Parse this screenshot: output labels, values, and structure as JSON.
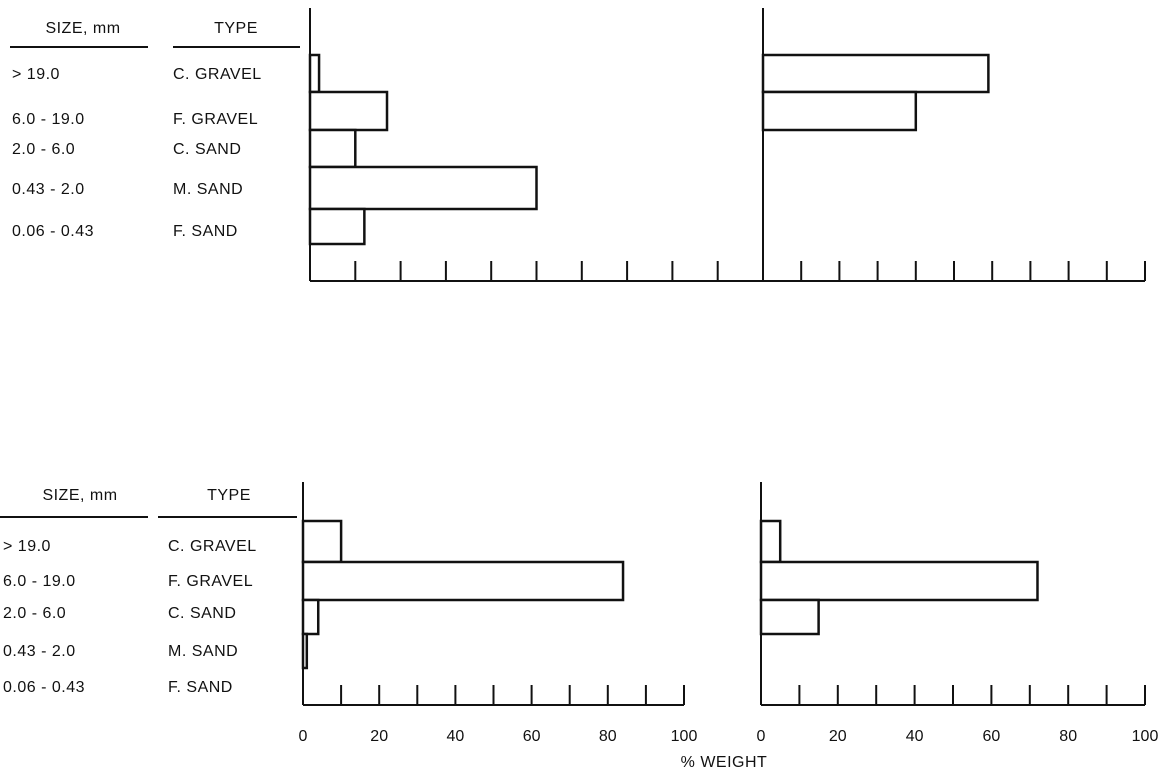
{
  "headers": {
    "size": "SIZE, mm",
    "type": "TYPE"
  },
  "x_axis_title": "% WEIGHT",
  "colors": {
    "ink": "#111111",
    "bar_fill": "#ffffff"
  },
  "chart_data": [
    {
      "type": "bar",
      "orientation": "horizontal",
      "panel": "top-left",
      "categories": [
        "> 19.0",
        "6.0 - 19.0",
        "2.0 - 6.0",
        "0.43 - 2.0",
        "0.06 - 0.43"
      ],
      "types": [
        "C. GRAVEL",
        "F. GRAVEL",
        "C. SAND",
        "M. SAND",
        "F. SAND"
      ],
      "values": [
        2,
        17,
        10,
        50,
        12
      ],
      "xlim": [
        0,
        100
      ],
      "tick_labels_shown": false
    },
    {
      "type": "bar",
      "orientation": "horizontal",
      "panel": "top-right",
      "categories": [
        "> 19.0",
        "6.0 - 19.0",
        "2.0 - 6.0",
        "0.43 - 2.0",
        "0.06 - 0.43"
      ],
      "types": [
        "C. GRAVEL",
        "F. GRAVEL",
        "C. SAND",
        "M. SAND",
        "F. SAND"
      ],
      "values": [
        59,
        40,
        0,
        0,
        0
      ],
      "xlim": [
        0,
        100
      ],
      "tick_labels_shown": false
    },
    {
      "type": "bar",
      "orientation": "horizontal",
      "panel": "bottom-left",
      "categories": [
        "> 19.0",
        "6.0 - 19.0",
        "2.0 - 6.0",
        "0.43 - 2.0",
        "0.06 - 0.43"
      ],
      "types": [
        "C. GRAVEL",
        "F. GRAVEL",
        "C. SAND",
        "M. SAND",
        "F. SAND"
      ],
      "values": [
        10,
        84,
        4,
        1,
        0
      ],
      "xlim": [
        0,
        100
      ],
      "ticks": [
        "0",
        "20",
        "40",
        "60",
        "80",
        "100"
      ],
      "tick_labels_shown": true
    },
    {
      "type": "bar",
      "orientation": "horizontal",
      "panel": "bottom-right",
      "categories": [
        "> 19.0",
        "6.0 - 19.0",
        "2.0 - 6.0",
        "0.43 - 2.0",
        "0.06 - 0.43"
      ],
      "types": [
        "C. GRAVEL",
        "F. GRAVEL",
        "C. SAND",
        "M. SAND",
        "F. SAND"
      ],
      "values": [
        5,
        72,
        15,
        0,
        0
      ],
      "xlim": [
        0,
        100
      ],
      "ticks": [
        "0",
        "20",
        "40",
        "60",
        "80",
        "100"
      ],
      "tick_labels_shown": true
    }
  ]
}
